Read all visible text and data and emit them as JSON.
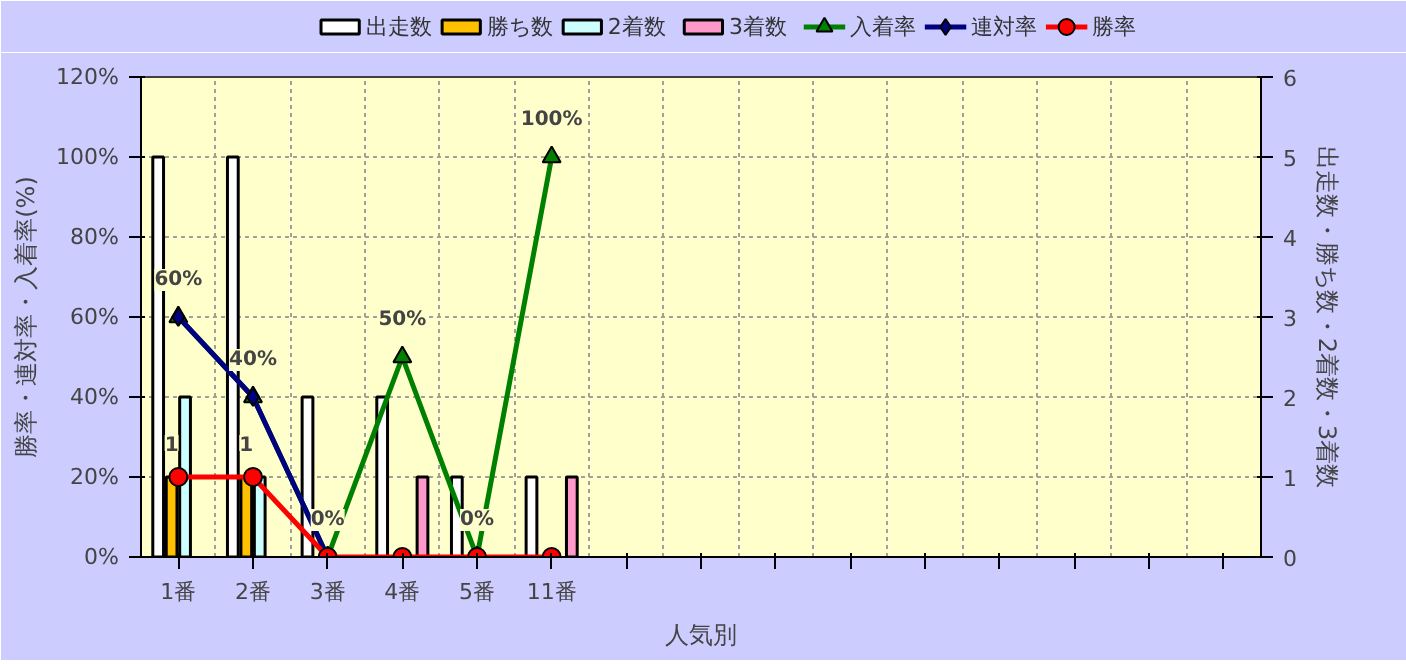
{
  "chart_data": {
    "type": "bar",
    "xlabel": "人気別",
    "ylabel": "勝率・連対率・入着率(%)",
    "y2label": "出走数・勝ち数・2着数・3着数",
    "categories": [
      "1番",
      "2番",
      "3番",
      "4番",
      "5番",
      "11番",
      null,
      null,
      null,
      null,
      null,
      null,
      null,
      null,
      null
    ],
    "ylim": [
      0,
      120
    ],
    "yticks": [
      {
        "value": 0,
        "label": "0%"
      },
      {
        "value": 20,
        "label": "20%"
      },
      {
        "value": 40,
        "label": "40%"
      },
      {
        "value": 60,
        "label": "60%"
      },
      {
        "value": 80,
        "label": "80%"
      },
      {
        "value": 100,
        "label": "100%"
      },
      {
        "value": 120,
        "label": "120%"
      }
    ],
    "y2lim": [
      0,
      6
    ],
    "y2ticks": [
      0,
      1,
      2,
      3,
      4,
      5,
      6
    ],
    "grid": true,
    "legend": "top",
    "series": [
      {
        "name": "出走数",
        "axis": "y2",
        "color": "#ffffff",
        "values": [
          5,
          5,
          2,
          2,
          1,
          1,
          null,
          null,
          null,
          null,
          null,
          null,
          null,
          null,
          null
        ]
      },
      {
        "name": "勝ち数",
        "axis": "y2",
        "color": "#ffc000",
        "values": [
          1,
          1,
          0,
          0,
          0,
          0,
          null,
          null,
          null,
          null,
          null,
          null,
          null,
          null,
          null
        ],
        "value_labels": [
          "1",
          "1",
          null,
          null,
          null,
          null,
          null,
          null,
          null,
          null,
          null,
          null,
          null,
          null,
          null
        ]
      },
      {
        "name": "2着数",
        "axis": "y2",
        "color": "#ccffff",
        "values": [
          2,
          1,
          0,
          0,
          0,
          0,
          null,
          null,
          null,
          null,
          null,
          null,
          null,
          null,
          null
        ]
      },
      {
        "name": "3着数",
        "axis": "y2",
        "color": "#ff99cc",
        "values": [
          0,
          0,
          0,
          1,
          0,
          1,
          null,
          null,
          null,
          null,
          null,
          null,
          null,
          null,
          null
        ]
      },
      {
        "name": "入着率",
        "type": "line",
        "color": "#008000",
        "marker": "triangle",
        "values": [
          60,
          40,
          0,
          50,
          0,
          100,
          null,
          null,
          null,
          null,
          null,
          null,
          null,
          null,
          null
        ],
        "value_labels": [
          "60%",
          "40%",
          "0%",
          "50%",
          "0%",
          "100%",
          null,
          null,
          null,
          null,
          null,
          null,
          null,
          null,
          null
        ]
      },
      {
        "name": "連対率",
        "type": "line",
        "color": "#000080",
        "marker": "diamond",
        "values": [
          60,
          40,
          0,
          null,
          null,
          null,
          null,
          null,
          null,
          null,
          null,
          null,
          null,
          null,
          null
        ]
      },
      {
        "name": "勝率",
        "type": "line",
        "color": "#ff0000",
        "marker": "circle",
        "values": [
          20,
          20,
          0,
          0,
          0,
          0,
          null,
          null,
          null,
          null,
          null,
          null,
          null,
          null,
          null
        ]
      }
    ]
  }
}
